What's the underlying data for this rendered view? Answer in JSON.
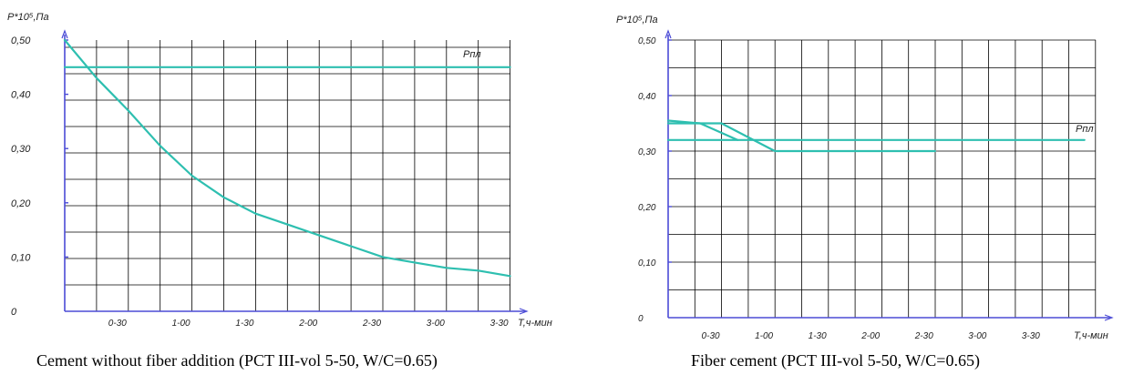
{
  "colors": {
    "axis": "#4b4bd6",
    "grid": "#000000",
    "curve": "#2ebfb0"
  },
  "chart_data": [
    {
      "type": "line",
      "ylabel": "P*10⁵,Па",
      "xlabel": "T,ч-мин",
      "caption": "Cement without fiber addition (PCT III-vol 5-50, W/C=0.65)",
      "x_ticks": [
        "0-30",
        "1-00",
        "1-30",
        "2-00",
        "2-30",
        "3-00",
        "3-30"
      ],
      "y_ticks": [
        "0",
        "0,10",
        "0,20",
        "0,30",
        "0,40",
        "0,50"
      ],
      "ylim": [
        0,
        0.5
      ],
      "xlim_hours": [
        0,
        3.5
      ],
      "series": [
        {
          "name": "Рпл",
          "x_hours": [
            0,
            3.5
          ],
          "values": [
            0.45,
            0.45
          ]
        },
        {
          "name": "",
          "x_hours": [
            0,
            0.25,
            0.5,
            0.75,
            1.0,
            1.25,
            1.5,
            1.75,
            2.0,
            2.25,
            2.5,
            2.75,
            3.0,
            3.25,
            3.5
          ],
          "values": [
            0.5,
            0.43,
            0.37,
            0.305,
            0.25,
            0.21,
            0.18,
            0.16,
            0.14,
            0.12,
            0.1,
            0.09,
            0.08,
            0.075,
            0.065
          ]
        }
      ]
    },
    {
      "type": "line",
      "ylabel": "P*10⁵,Па",
      "xlabel": "T,ч-мин",
      "caption": "Fiber cement (PCT III-vol 5-50, W/C=0.65)",
      "x_ticks": [
        "0-30",
        "1-00",
        "1-30",
        "2-00",
        "2-30",
        "3-00",
        "3-30"
      ],
      "y_ticks": [
        "0",
        "0,10",
        "0,20",
        "0,30",
        "0,40",
        "0,50"
      ],
      "ylim": [
        0,
        0.5
      ],
      "xlim_hours": [
        0,
        3.5
      ],
      "series": [
        {
          "name": "Рпл",
          "x_hours": [
            0,
            3.9
          ],
          "values": [
            0.32,
            0.32
          ]
        },
        {
          "name": "",
          "x_hours": [
            0,
            0.5,
            1.0,
            2.5
          ],
          "values": [
            0.35,
            0.35,
            0.3,
            0.3
          ]
        },
        {
          "name": "",
          "x_hours": [
            0,
            0.3,
            0.65
          ],
          "values": [
            0.355,
            0.35,
            0.32
          ]
        }
      ]
    }
  ]
}
